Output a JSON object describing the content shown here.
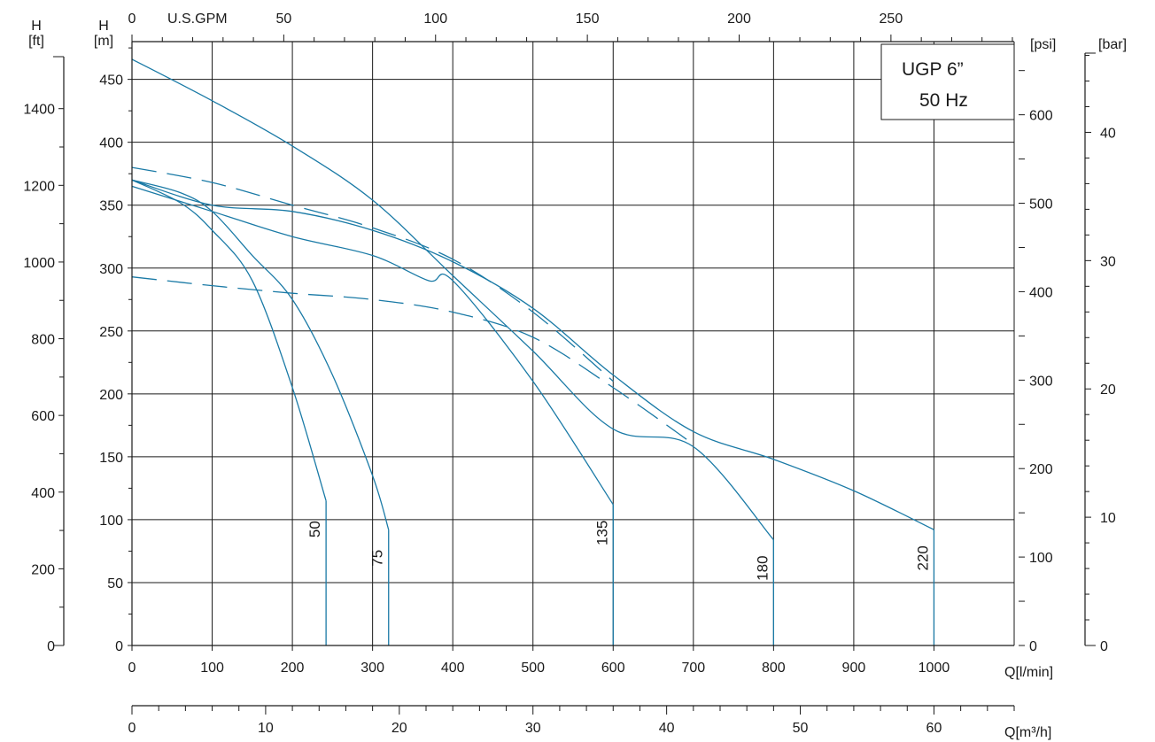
{
  "chart_data": {
    "type": "line",
    "title": "UGP 6”",
    "subtitle": "50 Hz",
    "axes": {
      "h_m": {
        "label_line1": "H",
        "label_line2": "[m]",
        "range": [
          0,
          480
        ],
        "ticks": [
          0,
          50,
          100,
          150,
          200,
          250,
          300,
          350,
          400,
          450
        ]
      },
      "h_ft": {
        "label_line1": "H",
        "label_line2": "[ft]",
        "ticks": [
          0,
          200,
          400,
          600,
          800,
          1000,
          1200,
          1400
        ]
      },
      "psi": {
        "label": "[psi]",
        "ticks": [
          0,
          100,
          200,
          300,
          400,
          500,
          600
        ]
      },
      "bar": {
        "label": "[bar]",
        "ticks": [
          0,
          10,
          20,
          30,
          40
        ]
      },
      "q_lmin": {
        "label": "Q[l/min]",
        "range": [
          0,
          1100
        ],
        "ticks": [
          0,
          100,
          200,
          300,
          400,
          500,
          600,
          700,
          800,
          900,
          1000
        ]
      },
      "q_gpm": {
        "label": "U.S.GPM",
        "ticks": [
          0,
          50,
          100,
          150,
          200,
          250
        ]
      },
      "q_m3h": {
        "label": "Q[m³/h]",
        "ticks": [
          0,
          10,
          20,
          30,
          40,
          50,
          60
        ]
      }
    },
    "grid": true,
    "series": [
      {
        "name": "50",
        "style": "solid",
        "points": [
          [
            0,
            370
          ],
          [
            60,
            352
          ],
          [
            100,
            330
          ],
          [
            150,
            290
          ],
          [
            200,
            205
          ],
          [
            242,
            115
          ]
        ],
        "end_q": 242
      },
      {
        "name": "75",
        "style": "solid",
        "points": [
          [
            0,
            370
          ],
          [
            60,
            360
          ],
          [
            100,
            345
          ],
          [
            150,
            310
          ],
          [
            200,
            275
          ],
          [
            250,
            215
          ],
          [
            300,
            135
          ],
          [
            320,
            92
          ]
        ],
        "end_q": 320
      },
      {
        "name": "135",
        "style": "solid",
        "points": [
          [
            0,
            365
          ],
          [
            100,
            345
          ],
          [
            200,
            325
          ],
          [
            300,
            310
          ],
          [
            370,
            290
          ],
          [
            400,
            290
          ],
          [
            500,
            210
          ],
          [
            600,
            112
          ]
        ],
        "end_q": 600
      },
      {
        "name": "180",
        "style": "solid",
        "points": [
          [
            0,
            466
          ],
          [
            100,
            433
          ],
          [
            200,
            397
          ],
          [
            300,
            354
          ],
          [
            400,
            294
          ],
          [
            500,
            234
          ],
          [
            600,
            172
          ],
          [
            700,
            158
          ],
          [
            800,
            84
          ]
        ],
        "end_q": 800
      },
      {
        "name": "220",
        "style": "solid",
        "points": [
          [
            0,
            370
          ],
          [
            100,
            350
          ],
          [
            200,
            345
          ],
          [
            300,
            330
          ],
          [
            400,
            305
          ],
          [
            500,
            268
          ],
          [
            600,
            215
          ],
          [
            700,
            170
          ],
          [
            800,
            148
          ],
          [
            900,
            123
          ],
          [
            1000,
            92
          ]
        ],
        "end_q": 1000
      }
    ]
  }
}
